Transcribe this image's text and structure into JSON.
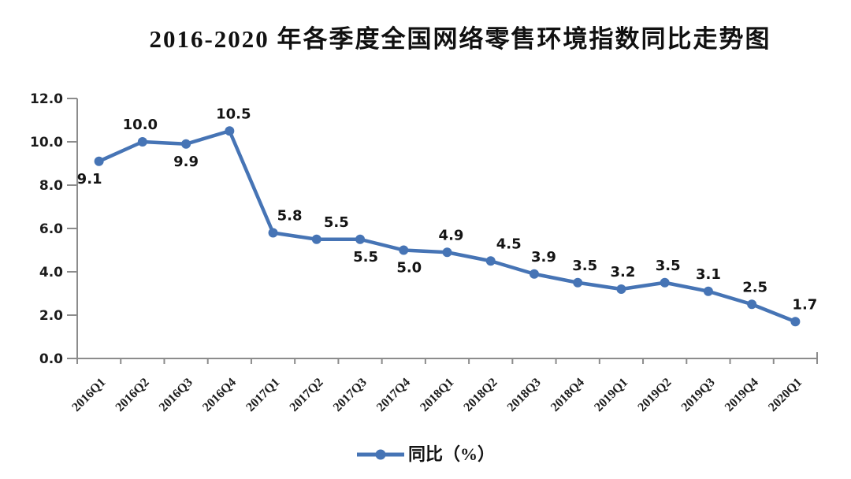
{
  "chart_data": {
    "type": "line",
    "title": "2016-2020 年各季度全国网络零售环境指数同比走势图",
    "categories": [
      "2016Q1",
      "2016Q2",
      "2016Q3",
      "2016Q4",
      "2017Q1",
      "2017Q2",
      "2017Q3",
      "2017Q4",
      "2018Q1",
      "2018Q2",
      "2018Q3",
      "2018Q4",
      "2019Q1",
      "2019Q2",
      "2019Q3",
      "2019Q4",
      "2020Q1"
    ],
    "series": [
      {
        "name": "同比（%）",
        "values": [
          9.1,
          10.0,
          9.9,
          10.5,
          5.8,
          5.5,
          5.5,
          5.0,
          4.9,
          4.5,
          3.9,
          3.5,
          3.2,
          3.5,
          3.1,
          2.5,
          1.7
        ]
      }
    ],
    "legend": {
      "label": "同比（%）",
      "position": "bottom"
    },
    "xlabel": "",
    "ylabel": "",
    "ylim": [
      0,
      12
    ],
    "ytick_step": 2,
    "ytick_labels": [
      "0.0",
      "2.0",
      "4.0",
      "6.0",
      "8.0",
      "10.0",
      "12.0"
    ],
    "grid": false,
    "data_labels": true,
    "label_positions": [
      "below",
      "above",
      "below",
      "above",
      "above",
      "above",
      "below",
      "below",
      "above",
      "above",
      "above",
      "above",
      "above",
      "above",
      "above",
      "above",
      "above"
    ],
    "label_dx_hint": [
      -12,
      -3,
      0,
      5,
      21,
      25,
      7,
      7,
      5,
      23,
      12,
      9,
      2,
      4,
      0,
      4,
      12
    ],
    "x_tick_label_rotation": -45,
    "marker": "circle",
    "colors": {
      "line": "#4674b5",
      "marker": "#4674b5",
      "axis": "#8c8c8c",
      "text": "#141414"
    }
  }
}
